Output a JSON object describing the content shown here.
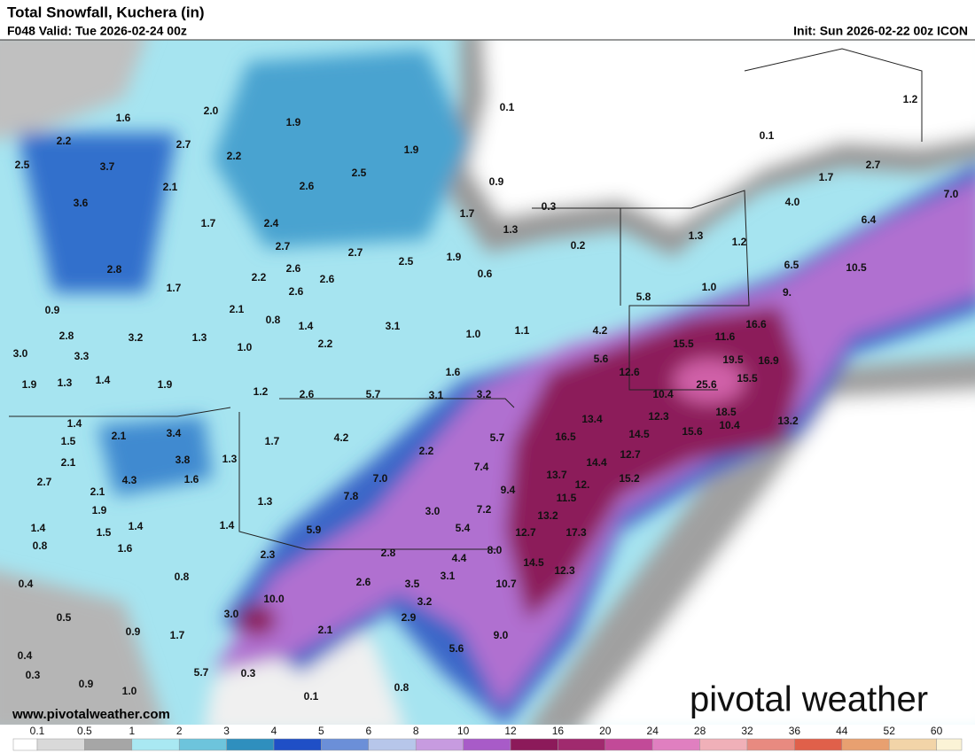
{
  "header": {
    "title": "Total Snowfall, Kuchera (in)",
    "valid": "F048 Valid: Tue 2026-02-24 00z",
    "init": "Init: Sun 2026-02-22 00z ICON"
  },
  "map_labels": [
    "1.6",
    "2.0",
    "1.9",
    "0.1",
    "1.2",
    "2.2",
    "2.7",
    "2.2",
    "1.9",
    "0.1",
    "2.5",
    "3.7",
    "2.6",
    "2.5",
    "0.9",
    "2.7",
    "1.7",
    "2.1",
    "3.6",
    "1.7",
    "0.3",
    "4.0",
    "7.0",
    "1.7",
    "2.4",
    "1.3",
    "0.2",
    "6.4",
    "2.7",
    "2.7",
    "2.5",
    "1.9",
    "1.3",
    "1.2",
    "2.8",
    "2.6",
    "2.2",
    "2.6",
    "0.6",
    "6.5",
    "10.5",
    "1.7",
    "2.6",
    "1.0",
    "9.",
    "0.9",
    "2.1",
    "5.8",
    "0.8",
    "1.4",
    "3.1",
    "1.0",
    "1.1",
    "4.2",
    "16.6",
    "2.8",
    "3.2",
    "1.3",
    "2.2",
    "15.5",
    "11.6",
    "3.0",
    "3.3",
    "1.0",
    "5.6",
    "19.5",
    "16.9",
    "1.9",
    "1.3",
    "1.4",
    "1.9",
    "1.6",
    "12.6",
    "25.6",
    "15.5",
    "1.2",
    "2.6",
    "5.7",
    "3.1",
    "3.2",
    "10.4",
    "1.4",
    "13.4",
    "12.3",
    "18.5",
    "3.4",
    "2.1",
    "1.5",
    "1.7",
    "4.2",
    "5.7",
    "16.5",
    "14.5",
    "15.6",
    "10.4",
    "13.2",
    "2.1",
    "3.8",
    "1.3",
    "2.2",
    "12.7",
    "2.7",
    "4.3",
    "1.6",
    "7.0",
    "7.4",
    "13.7",
    "14.4",
    "15.2",
    "12.",
    "2.1",
    "9.4",
    "7.8",
    "11.5",
    "1.9",
    "1.3",
    "3.0",
    "7.2",
    "13.2",
    "1.4",
    "1.5",
    "1.4",
    "1.4",
    "5.9",
    "5.4",
    "17.3",
    "12.7",
    "0.8",
    "1.6",
    "2.3",
    "2.8",
    "8.0",
    "14.5",
    "0.8",
    "4.4",
    "12.3",
    "3.1",
    "2.6",
    "0.4",
    "3.5",
    "10.0",
    "3.2",
    "10.7",
    "0.5",
    "3.0",
    "2.9",
    "0.9",
    "1.7",
    "2.1",
    "9.0",
    "0.4",
    "5.6",
    "0.3",
    "5.7",
    "0.3",
    "0.9",
    "1.0",
    "0.8",
    "0.1"
  ],
  "footer": {
    "website": "www.pivotalweather.com",
    "logo": "pivotal weather"
  },
  "legend": {
    "ticks": [
      "0.1",
      "0.5",
      "1",
      "2",
      "3",
      "4",
      "5",
      "6",
      "8",
      "10",
      "12",
      "16",
      "20",
      "24",
      "28",
      "32",
      "36",
      "44",
      "52",
      "60"
    ]
  }
}
